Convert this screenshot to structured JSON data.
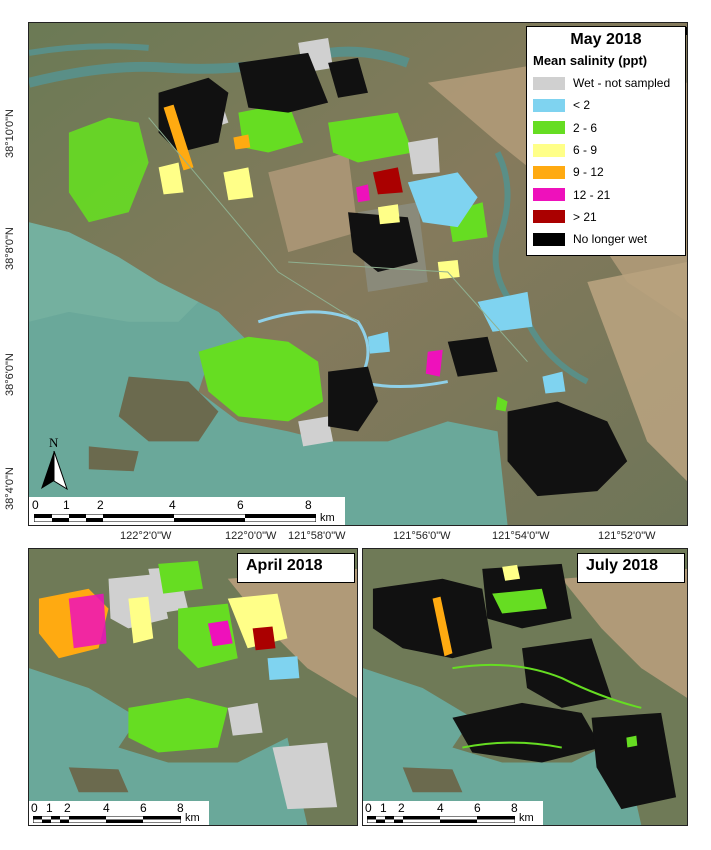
{
  "main_map": {
    "title": "May 2018",
    "legend": {
      "heading": "Mean salinity (ppt)",
      "items": [
        {
          "label": "Wet - not sampled",
          "color": "#d0d0d0"
        },
        {
          "label": "< 2",
          "color": "#7fd3f0"
        },
        {
          "label": "2 - 6",
          "color": "#66dd22"
        },
        {
          "label": "6 - 9",
          "color": "#ffff88"
        },
        {
          "label": "9 - 12",
          "color": "#ffaa11"
        },
        {
          "label": "12 - 21",
          "color": "#ee11bb"
        },
        {
          "label": "> 21",
          "color": "#aa0000"
        },
        {
          "label": "No longer wet",
          "color": "#000000"
        }
      ]
    },
    "lat_labels": [
      "38°10'0\"N",
      "38°8'0\"N",
      "38°6'0\"N",
      "38°4'0\"N"
    ],
    "lon_labels": [
      "122°2'0\"W",
      "122°0'0\"W",
      "121°58'0\"W",
      "121°56'0\"W",
      "121°54'0\"W",
      "121°52'0\"W"
    ],
    "north_label": "N",
    "scale_numbers": [
      "0",
      "1",
      "2",
      "4",
      "6",
      "8"
    ],
    "scale_unit": "km"
  },
  "april_map": {
    "title": "April 2018",
    "scale_numbers": [
      "0",
      "1",
      "2",
      "4",
      "6",
      "8"
    ],
    "scale_unit": "km"
  },
  "july_map": {
    "title": "July 2018",
    "scale_numbers": [
      "0",
      "1",
      "2",
      "4",
      "6",
      "8"
    ],
    "scale_unit": "km"
  }
}
